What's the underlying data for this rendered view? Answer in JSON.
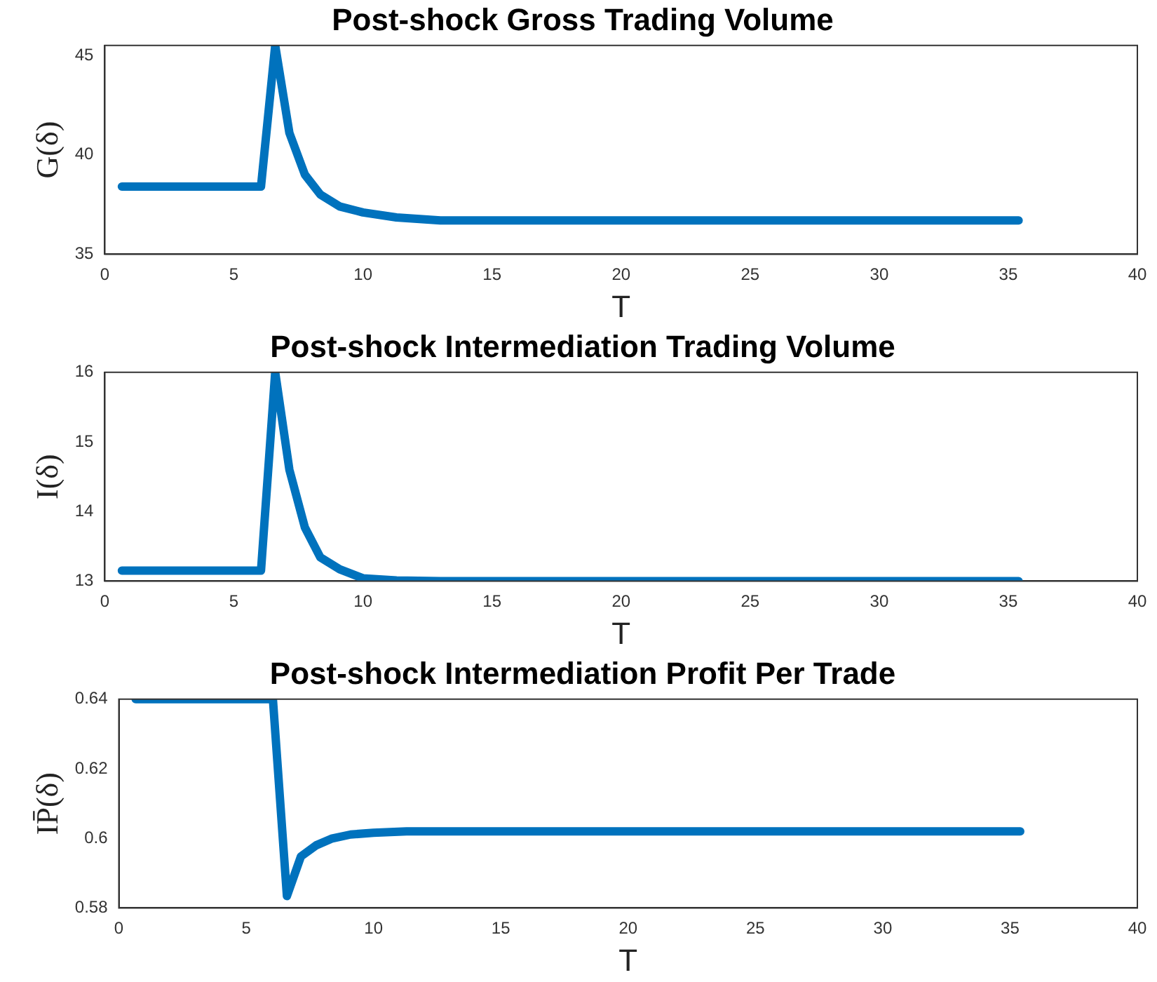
{
  "chart_data": [
    {
      "type": "line",
      "title": "Post-shock Gross Trading Volume",
      "xlabel": "T",
      "ylabel": "G(δ)",
      "marker": "none",
      "xlim": [
        0,
        40
      ],
      "xticks": [
        0,
        5,
        10,
        15,
        20,
        25,
        30,
        35,
        40
      ],
      "ylim": [
        35,
        45.5
      ],
      "yticks": [
        35,
        40,
        45
      ],
      "series": [
        {
          "color": "#0072bd",
          "x": [
            0.66,
            6.05,
            6.6,
            7.15,
            7.75,
            8.35,
            9.1,
            10,
            11.3,
            13,
            15,
            20,
            25,
            30,
            35.4
          ],
          "values": [
            38.4,
            38.4,
            45.5,
            41.1,
            39.0,
            38.0,
            37.4,
            37.1,
            36.85,
            36.7,
            36.7,
            36.7,
            36.7,
            36.7,
            36.7
          ]
        }
      ]
    },
    {
      "type": "line",
      "title": "Post-shock Intermediation Trading Volume",
      "xlabel": "T",
      "ylabel": "I(δ)",
      "marker": "none",
      "xlim": [
        0,
        40
      ],
      "xticks": [
        0,
        5,
        10,
        15,
        20,
        25,
        30,
        35,
        40
      ],
      "ylim": [
        13,
        16
      ],
      "yticks": [
        13,
        14,
        15,
        16
      ],
      "series": [
        {
          "color": "#0072bd",
          "x": [
            0.66,
            6.05,
            6.6,
            7.15,
            7.75,
            8.35,
            9.1,
            10,
            11.3,
            13,
            15,
            20,
            25,
            30,
            35.4
          ],
          "values": [
            13.15,
            13.15,
            16,
            14.6,
            13.77,
            13.34,
            13.17,
            13.04,
            13.01,
            13.0,
            13.0,
            13.0,
            13.0,
            13.0,
            13.0
          ]
        }
      ]
    },
    {
      "type": "line",
      "title": "Post-shock Intermediation Profit Per Trade",
      "xlabel": "T",
      "ylabel": "IP̄(δ)",
      "marker": "none",
      "xlim": [
        0,
        40
      ],
      "xticks": [
        0,
        5,
        10,
        15,
        20,
        25,
        30,
        35,
        40
      ],
      "ylim": [
        0.58,
        0.64
      ],
      "yticks": [
        0.58,
        0.6,
        0.62,
        0.64
      ],
      "series": [
        {
          "color": "#0072bd",
          "x": [
            0.66,
            6.05,
            6.6,
            7.15,
            7.75,
            8.35,
            9.1,
            10,
            11.3,
            13,
            15,
            20,
            25,
            30,
            35.4
          ],
          "values": [
            0.64,
            0.64,
            0.5834,
            0.5948,
            0.598,
            0.5999,
            0.6011,
            0.6016,
            0.602,
            0.602,
            0.602,
            0.602,
            0.602,
            0.602,
            0.602
          ]
        }
      ]
    }
  ]
}
